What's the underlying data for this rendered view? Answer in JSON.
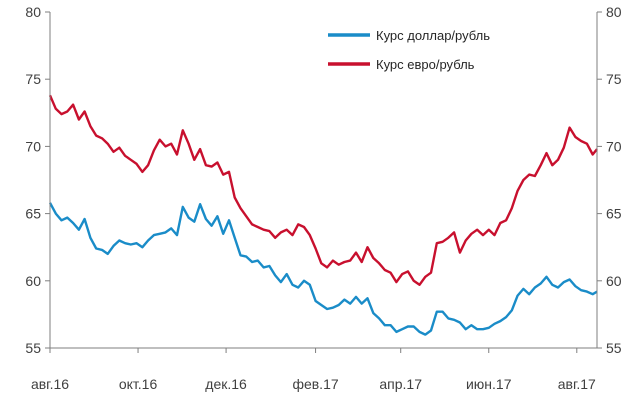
{
  "chart_data": {
    "type": "line",
    "title": "",
    "xlabel": "",
    "ylabel": "",
    "ylim": [
      55,
      80
    ],
    "y_ticks": [
      55,
      60,
      65,
      70,
      75,
      80
    ],
    "y_axis": "left and right (mirrored)",
    "grid": false,
    "legend_position": "top-right",
    "x_range": [
      "2016-08-01",
      "2017-08-15"
    ],
    "x_tick_labels": [
      {
        "date": "2016-08-01",
        "label": "авг.16"
      },
      {
        "date": "2016-10-01",
        "label": "окт.16"
      },
      {
        "date": "2016-12-01",
        "label": "дек.16"
      },
      {
        "date": "2017-02-01",
        "label": "фев.17"
      },
      {
        "date": "2017-04-01",
        "label": "апр.17"
      },
      {
        "date": "2017-06-01",
        "label": "июн.17"
      },
      {
        "date": "2017-08-01",
        "label": "авг.17"
      }
    ],
    "series": [
      {
        "name": "Курс доллар/рубль",
        "color": "#1a8cc8",
        "points": [
          [
            "2016-08-01",
            65.8
          ],
          [
            "2016-08-05",
            65.0
          ],
          [
            "2016-08-09",
            64.5
          ],
          [
            "2016-08-13",
            64.7
          ],
          [
            "2016-08-17",
            64.3
          ],
          [
            "2016-08-21",
            63.8
          ],
          [
            "2016-08-25",
            64.6
          ],
          [
            "2016-08-29",
            63.2
          ],
          [
            "2016-09-02",
            62.4
          ],
          [
            "2016-09-06",
            62.3
          ],
          [
            "2016-09-10",
            62.0
          ],
          [
            "2016-09-14",
            62.6
          ],
          [
            "2016-09-18",
            63.0
          ],
          [
            "2016-09-22",
            62.8
          ],
          [
            "2016-09-26",
            62.7
          ],
          [
            "2016-09-30",
            62.8
          ],
          [
            "2016-10-04",
            62.5
          ],
          [
            "2016-10-08",
            63.0
          ],
          [
            "2016-10-12",
            63.4
          ],
          [
            "2016-10-16",
            63.5
          ],
          [
            "2016-10-20",
            63.6
          ],
          [
            "2016-10-24",
            63.9
          ],
          [
            "2016-10-28",
            63.4
          ],
          [
            "2016-11-01",
            65.5
          ],
          [
            "2016-11-05",
            64.7
          ],
          [
            "2016-11-09",
            64.4
          ],
          [
            "2016-11-13",
            65.7
          ],
          [
            "2016-11-17",
            64.6
          ],
          [
            "2016-11-21",
            64.1
          ],
          [
            "2016-11-25",
            64.8
          ],
          [
            "2016-11-29",
            63.5
          ],
          [
            "2016-12-03",
            64.5
          ],
          [
            "2016-12-07",
            63.2
          ],
          [
            "2016-12-11",
            61.9
          ],
          [
            "2016-12-15",
            61.8
          ],
          [
            "2016-12-19",
            61.4
          ],
          [
            "2016-12-23",
            61.5
          ],
          [
            "2016-12-27",
            61.0
          ],
          [
            "2016-12-31",
            61.1
          ],
          [
            "2017-01-04",
            60.4
          ],
          [
            "2017-01-08",
            59.9
          ],
          [
            "2017-01-12",
            60.5
          ],
          [
            "2017-01-16",
            59.7
          ],
          [
            "2017-01-20",
            59.5
          ],
          [
            "2017-01-24",
            60.0
          ],
          [
            "2017-01-28",
            59.7
          ],
          [
            "2017-02-01",
            58.5
          ],
          [
            "2017-02-05",
            58.2
          ],
          [
            "2017-02-09",
            57.9
          ],
          [
            "2017-02-13",
            58.0
          ],
          [
            "2017-02-17",
            58.2
          ],
          [
            "2017-02-21",
            58.6
          ],
          [
            "2017-02-25",
            58.3
          ],
          [
            "2017-03-01",
            58.8
          ],
          [
            "2017-03-05",
            58.3
          ],
          [
            "2017-03-09",
            58.7
          ],
          [
            "2017-03-13",
            57.6
          ],
          [
            "2017-03-17",
            57.2
          ],
          [
            "2017-03-21",
            56.7
          ],
          [
            "2017-03-25",
            56.7
          ],
          [
            "2017-03-29",
            56.2
          ],
          [
            "2017-04-02",
            56.4
          ],
          [
            "2017-04-06",
            56.6
          ],
          [
            "2017-04-10",
            56.6
          ],
          [
            "2017-04-14",
            56.2
          ],
          [
            "2017-04-18",
            56.0
          ],
          [
            "2017-04-22",
            56.3
          ],
          [
            "2017-04-26",
            57.7
          ],
          [
            "2017-04-30",
            57.7
          ],
          [
            "2017-05-04",
            57.2
          ],
          [
            "2017-05-08",
            57.1
          ],
          [
            "2017-05-12",
            56.9
          ],
          [
            "2017-05-16",
            56.4
          ],
          [
            "2017-05-20",
            56.7
          ],
          [
            "2017-05-24",
            56.4
          ],
          [
            "2017-05-28",
            56.4
          ],
          [
            "2017-06-01",
            56.5
          ],
          [
            "2017-06-05",
            56.8
          ],
          [
            "2017-06-09",
            57.0
          ],
          [
            "2017-06-13",
            57.3
          ],
          [
            "2017-06-17",
            57.8
          ],
          [
            "2017-06-21",
            58.9
          ],
          [
            "2017-06-25",
            59.4
          ],
          [
            "2017-06-29",
            59.0
          ],
          [
            "2017-07-03",
            59.5
          ],
          [
            "2017-07-07",
            59.8
          ],
          [
            "2017-07-11",
            60.3
          ],
          [
            "2017-07-15",
            59.7
          ],
          [
            "2017-07-19",
            59.5
          ],
          [
            "2017-07-23",
            59.9
          ],
          [
            "2017-07-27",
            60.1
          ],
          [
            "2017-07-31",
            59.6
          ],
          [
            "2017-08-04",
            59.3
          ],
          [
            "2017-08-08",
            59.2
          ],
          [
            "2017-08-12",
            59.0
          ],
          [
            "2017-08-15",
            59.2
          ]
        ]
      },
      {
        "name": "Курс евро/рубль",
        "color": "#c8102e",
        "points": [
          [
            "2016-08-01",
            73.8
          ],
          [
            "2016-08-05",
            72.8
          ],
          [
            "2016-08-09",
            72.4
          ],
          [
            "2016-08-13",
            72.6
          ],
          [
            "2016-08-17",
            73.1
          ],
          [
            "2016-08-21",
            72.0
          ],
          [
            "2016-08-25",
            72.6
          ],
          [
            "2016-08-29",
            71.5
          ],
          [
            "2016-09-02",
            70.8
          ],
          [
            "2016-09-06",
            70.6
          ],
          [
            "2016-09-10",
            70.2
          ],
          [
            "2016-09-14",
            69.6
          ],
          [
            "2016-09-18",
            69.9
          ],
          [
            "2016-09-22",
            69.3
          ],
          [
            "2016-09-26",
            69.0
          ],
          [
            "2016-09-30",
            68.7
          ],
          [
            "2016-10-04",
            68.1
          ],
          [
            "2016-10-08",
            68.6
          ],
          [
            "2016-10-12",
            69.7
          ],
          [
            "2016-10-16",
            70.5
          ],
          [
            "2016-10-20",
            70.0
          ],
          [
            "2016-10-24",
            70.2
          ],
          [
            "2016-10-28",
            69.4
          ],
          [
            "2016-11-01",
            71.2
          ],
          [
            "2016-11-05",
            70.2
          ],
          [
            "2016-11-09",
            69.0
          ],
          [
            "2016-11-13",
            69.8
          ],
          [
            "2016-11-17",
            68.6
          ],
          [
            "2016-11-21",
            68.5
          ],
          [
            "2016-11-25",
            68.8
          ],
          [
            "2016-11-29",
            67.9
          ],
          [
            "2016-12-03",
            68.1
          ],
          [
            "2016-12-07",
            66.2
          ],
          [
            "2016-12-11",
            65.4
          ],
          [
            "2016-12-15",
            64.8
          ],
          [
            "2016-12-19",
            64.2
          ],
          [
            "2016-12-23",
            64.0
          ],
          [
            "2016-12-27",
            63.8
          ],
          [
            "2016-12-31",
            63.7
          ],
          [
            "2017-01-04",
            63.2
          ],
          [
            "2017-01-08",
            63.6
          ],
          [
            "2017-01-12",
            63.8
          ],
          [
            "2017-01-16",
            63.4
          ],
          [
            "2017-01-20",
            64.2
          ],
          [
            "2017-01-24",
            64.0
          ],
          [
            "2017-01-28",
            63.4
          ],
          [
            "2017-02-01",
            62.4
          ],
          [
            "2017-02-05",
            61.3
          ],
          [
            "2017-02-09",
            61.0
          ],
          [
            "2017-02-13",
            61.5
          ],
          [
            "2017-02-17",
            61.2
          ],
          [
            "2017-02-21",
            61.4
          ],
          [
            "2017-02-25",
            61.5
          ],
          [
            "2017-03-01",
            62.1
          ],
          [
            "2017-03-05",
            61.4
          ],
          [
            "2017-03-09",
            62.5
          ],
          [
            "2017-03-13",
            61.7
          ],
          [
            "2017-03-17",
            61.3
          ],
          [
            "2017-03-21",
            60.8
          ],
          [
            "2017-03-25",
            60.6
          ],
          [
            "2017-03-29",
            59.9
          ],
          [
            "2017-04-02",
            60.5
          ],
          [
            "2017-04-06",
            60.7
          ],
          [
            "2017-04-10",
            60.0
          ],
          [
            "2017-04-14",
            59.7
          ],
          [
            "2017-04-18",
            60.3
          ],
          [
            "2017-04-22",
            60.6
          ],
          [
            "2017-04-26",
            62.8
          ],
          [
            "2017-04-30",
            62.9
          ],
          [
            "2017-05-04",
            63.2
          ],
          [
            "2017-05-08",
            63.6
          ],
          [
            "2017-05-12",
            62.1
          ],
          [
            "2017-05-16",
            63.0
          ],
          [
            "2017-05-20",
            63.5
          ],
          [
            "2017-05-24",
            63.8
          ],
          [
            "2017-05-28",
            63.4
          ],
          [
            "2017-06-01",
            63.8
          ],
          [
            "2017-06-05",
            63.4
          ],
          [
            "2017-06-09",
            64.3
          ],
          [
            "2017-06-13",
            64.5
          ],
          [
            "2017-06-17",
            65.4
          ],
          [
            "2017-06-21",
            66.7
          ],
          [
            "2017-06-25",
            67.5
          ],
          [
            "2017-06-29",
            67.9
          ],
          [
            "2017-07-03",
            67.8
          ],
          [
            "2017-07-07",
            68.6
          ],
          [
            "2017-07-11",
            69.5
          ],
          [
            "2017-07-15",
            68.6
          ],
          [
            "2017-07-19",
            69.0
          ],
          [
            "2017-07-23",
            69.9
          ],
          [
            "2017-07-27",
            71.4
          ],
          [
            "2017-07-31",
            70.7
          ],
          [
            "2017-08-04",
            70.4
          ],
          [
            "2017-08-08",
            70.2
          ],
          [
            "2017-08-12",
            69.4
          ],
          [
            "2017-08-15",
            69.8
          ]
        ]
      }
    ]
  }
}
